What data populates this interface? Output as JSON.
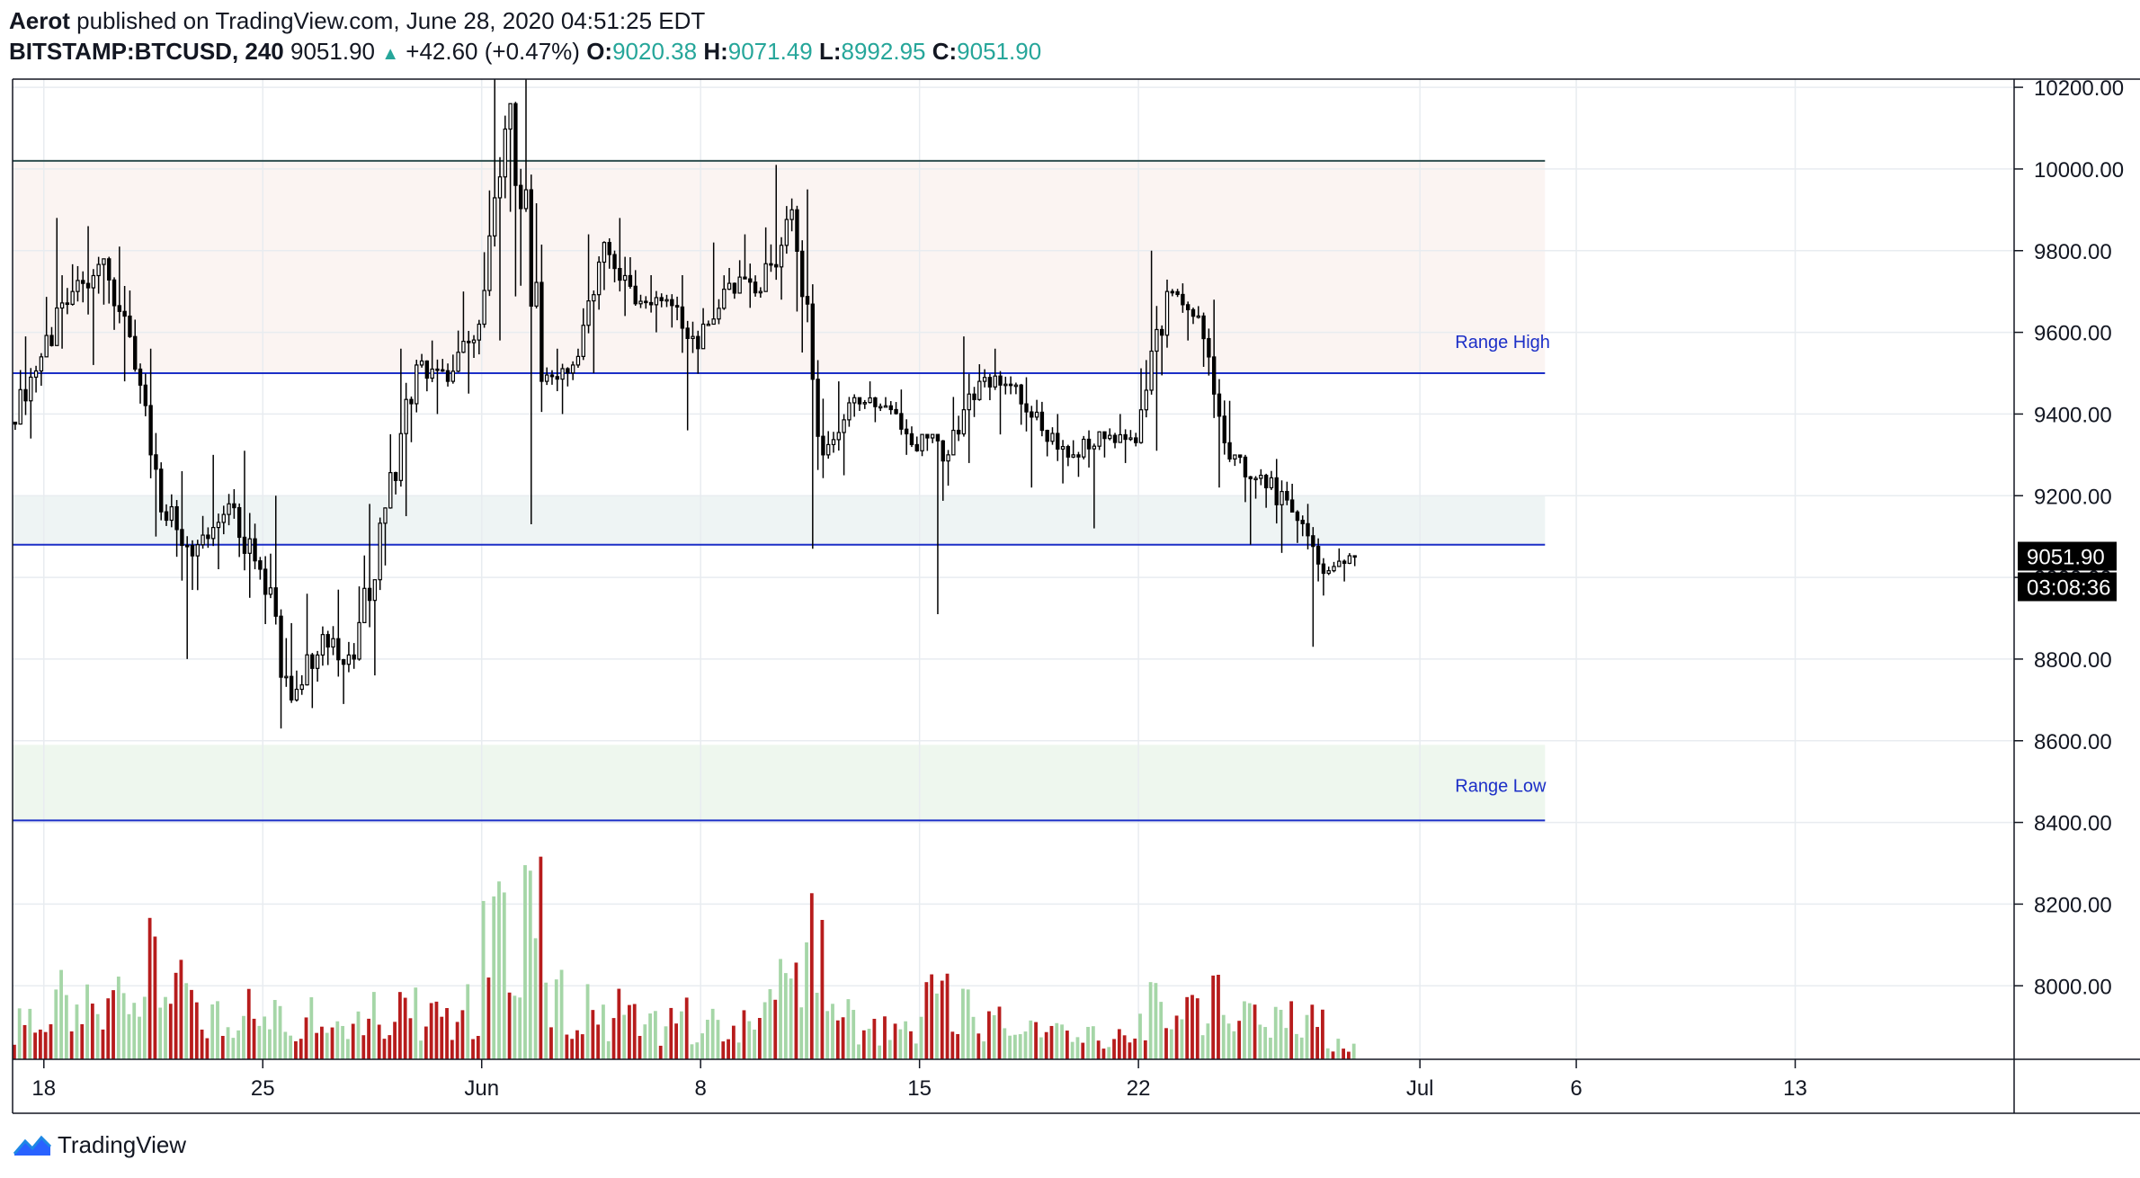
{
  "header": {
    "publisher": "Aerot",
    "published_text": "published on TradingView.com, June 28, 2020 04:51:25 EDT",
    "symbol": "BITSTAMP:BTCUSD, 240",
    "last": "9051.90",
    "change_arrow": "▲",
    "change": "+42.60 (+0.47%)",
    "o_label": "O:",
    "o": "9020.38",
    "h_label": "H:",
    "h": "9071.49",
    "l_label": "L:",
    "l": "8992.95",
    "c_label": "C:",
    "c": "9051.90"
  },
  "price_label": "9051.90",
  "countdown_label": "03:08:36",
  "logo_text": "TradingView",
  "colors": {
    "up_volume": "#a5d6a7",
    "down_volume": "#b71c1c",
    "candle": "#000000",
    "range_line": "#1c2fc7",
    "top_line": "#2f4f4f",
    "accent_green": "#26a69a",
    "price_tag_bg": "#000000"
  },
  "chart_data": {
    "type": "candlestick",
    "title": "BITSTAMP:BTCUSD, 240",
    "timeframe": "240",
    "ylim": [
      7820,
      10220
    ],
    "y_ticks": [
      "10200.00",
      "10000.00",
      "9800.00",
      "9600.00",
      "9400.00",
      "9200.00",
      "9000.00",
      "8800.00",
      "8600.00",
      "8400.00",
      "8200.00",
      "8000.00"
    ],
    "x_ticks": [
      "18",
      "25",
      "Jun",
      "8",
      "15",
      "22",
      "Jul",
      "6",
      "13"
    ],
    "x_range": [
      "2020-05-17",
      "2020-07-20"
    ],
    "grid": true,
    "ohlc_daily": [
      {
        "date": "2020-05-17",
        "o": 9380,
        "h": 9590,
        "l": 9340,
        "c": 9540
      },
      {
        "date": "2020-05-18",
        "o": 9540,
        "h": 9880,
        "l": 9560,
        "c": 9700
      },
      {
        "date": "2020-05-19",
        "o": 9700,
        "h": 9860,
        "l": 9520,
        "c": 9780
      },
      {
        "date": "2020-05-20",
        "o": 9780,
        "h": 9810,
        "l": 9480,
        "c": 9510
      },
      {
        "date": "2020-05-21",
        "o": 9510,
        "h": 9560,
        "l": 9100,
        "c": 9140
      },
      {
        "date": "2020-05-22",
        "o": 9140,
        "h": 9260,
        "l": 8800,
        "c": 9080
      },
      {
        "date": "2020-05-23",
        "o": 9080,
        "h": 9300,
        "l": 9020,
        "c": 9180
      },
      {
        "date": "2020-05-24",
        "o": 9180,
        "h": 9310,
        "l": 8950,
        "c": 9020
      },
      {
        "date": "2020-05-25",
        "o": 9020,
        "h": 9200,
        "l": 8630,
        "c": 8700
      },
      {
        "date": "2020-05-26",
        "o": 8700,
        "h": 8960,
        "l": 8680,
        "c": 8860
      },
      {
        "date": "2020-05-27",
        "o": 8860,
        "h": 8970,
        "l": 8690,
        "c": 8800
      },
      {
        "date": "2020-05-28",
        "o": 8800,
        "h": 9180,
        "l": 8760,
        "c": 9170
      },
      {
        "date": "2020-05-29",
        "o": 9170,
        "h": 9560,
        "l": 9150,
        "c": 9520
      },
      {
        "date": "2020-05-30",
        "o": 9520,
        "h": 9580,
        "l": 9400,
        "c": 9480
      },
      {
        "date": "2020-05-31",
        "o": 9480,
        "h": 9700,
        "l": 9450,
        "c": 9620
      },
      {
        "date": "2020-06-01",
        "o": 9620,
        "h": 10220,
        "l": 9580,
        "c": 10160
      },
      {
        "date": "2020-06-02",
        "o": 10160,
        "h": 10220,
        "l": 9130,
        "c": 9480
      },
      {
        "date": "2020-06-03",
        "o": 9480,
        "h": 9560,
        "l": 9400,
        "c": 9520
      },
      {
        "date": "2020-06-04",
        "o": 9520,
        "h": 9840,
        "l": 9500,
        "c": 9820
      },
      {
        "date": "2020-06-05",
        "o": 9820,
        "h": 9880,
        "l": 9640,
        "c": 9670
      },
      {
        "date": "2020-06-06",
        "o": 9670,
        "h": 9740,
        "l": 9600,
        "c": 9680
      },
      {
        "date": "2020-06-07",
        "o": 9680,
        "h": 9740,
        "l": 9360,
        "c": 9560
      },
      {
        "date": "2020-06-08",
        "o": 9560,
        "h": 9820,
        "l": 9620,
        "c": 9720
      },
      {
        "date": "2020-06-09",
        "o": 9720,
        "h": 9840,
        "l": 9660,
        "c": 9700
      },
      {
        "date": "2020-06-10",
        "o": 9700,
        "h": 10010,
        "l": 9680,
        "c": 9900
      },
      {
        "date": "2020-06-11",
        "o": 9900,
        "h": 9950,
        "l": 9070,
        "c": 9300
      },
      {
        "date": "2020-06-12",
        "o": 9300,
        "h": 9480,
        "l": 9250,
        "c": 9440
      },
      {
        "date": "2020-06-13",
        "o": 9440,
        "h": 9480,
        "l": 9380,
        "c": 9420
      },
      {
        "date": "2020-06-14",
        "o": 9420,
        "h": 9460,
        "l": 9300,
        "c": 9310
      },
      {
        "date": "2020-06-15",
        "o": 9310,
        "h": 9350,
        "l": 8910,
        "c": 9300
      },
      {
        "date": "2020-06-16",
        "o": 9300,
        "h": 9590,
        "l": 9280,
        "c": 9480
      },
      {
        "date": "2020-06-17",
        "o": 9480,
        "h": 9560,
        "l": 9350,
        "c": 9470
      },
      {
        "date": "2020-06-18",
        "o": 9470,
        "h": 9490,
        "l": 9220,
        "c": 9360
      },
      {
        "date": "2020-06-19",
        "o": 9360,
        "h": 9400,
        "l": 9230,
        "c": 9300
      },
      {
        "date": "2020-06-20",
        "o": 9300,
        "h": 9360,
        "l": 9120,
        "c": 9340
      },
      {
        "date": "2020-06-21",
        "o": 9340,
        "h": 9400,
        "l": 9280,
        "c": 9330
      },
      {
        "date": "2020-06-22",
        "o": 9330,
        "h": 9800,
        "l": 9310,
        "c": 9700
      },
      {
        "date": "2020-06-23",
        "o": 9700,
        "h": 9720,
        "l": 9580,
        "c": 9640
      },
      {
        "date": "2020-06-24",
        "o": 9640,
        "h": 9680,
        "l": 9220,
        "c": 9290
      },
      {
        "date": "2020-06-25",
        "o": 9290,
        "h": 9300,
        "l": 9080,
        "c": 9250
      },
      {
        "date": "2020-06-26",
        "o": 9250,
        "h": 9290,
        "l": 9060,
        "c": 9160
      },
      {
        "date": "2020-06-27",
        "o": 9160,
        "h": 9180,
        "l": 8830,
        "c": 9010
      },
      {
        "date": "2020-06-28",
        "o": 9010,
        "h": 9071,
        "l": 8990,
        "c": 9052
      }
    ],
    "volume_daily": [
      {
        "date": "2020-05-17",
        "v": 0.25
      },
      {
        "date": "2020-05-18",
        "v": 0.35
      },
      {
        "date": "2020-05-19",
        "v": 0.3
      },
      {
        "date": "2020-05-20",
        "v": 0.45
      },
      {
        "date": "2020-05-21",
        "v": 0.55
      },
      {
        "date": "2020-05-22",
        "v": 0.4
      },
      {
        "date": "2020-05-23",
        "v": 0.25
      },
      {
        "date": "2020-05-24",
        "v": 0.3
      },
      {
        "date": "2020-05-25",
        "v": 0.35
      },
      {
        "date": "2020-05-26",
        "v": 0.3
      },
      {
        "date": "2020-05-27",
        "v": 0.25
      },
      {
        "date": "2020-05-28",
        "v": 0.3
      },
      {
        "date": "2020-05-29",
        "v": 0.35
      },
      {
        "date": "2020-05-30",
        "v": 0.25
      },
      {
        "date": "2020-05-31",
        "v": 0.3
      },
      {
        "date": "2020-06-01",
        "v": 0.8
      },
      {
        "date": "2020-06-02",
        "v": 1.0
      },
      {
        "date": "2020-06-03",
        "v": 0.35
      },
      {
        "date": "2020-06-04",
        "v": 0.3
      },
      {
        "date": "2020-06-05",
        "v": 0.3
      },
      {
        "date": "2020-06-06",
        "v": 0.2
      },
      {
        "date": "2020-06-07",
        "v": 0.25
      },
      {
        "date": "2020-06-08",
        "v": 0.2
      },
      {
        "date": "2020-06-09",
        "v": 0.25
      },
      {
        "date": "2020-06-10",
        "v": 0.45
      },
      {
        "date": "2020-06-11",
        "v": 0.65
      },
      {
        "date": "2020-06-12",
        "v": 0.3
      },
      {
        "date": "2020-06-13",
        "v": 0.2
      },
      {
        "date": "2020-06-14",
        "v": 0.2
      },
      {
        "date": "2020-06-15",
        "v": 0.4
      },
      {
        "date": "2020-06-16",
        "v": 0.3
      },
      {
        "date": "2020-06-17",
        "v": 0.25
      },
      {
        "date": "2020-06-18",
        "v": 0.2
      },
      {
        "date": "2020-06-19",
        "v": 0.2
      },
      {
        "date": "2020-06-20",
        "v": 0.15
      },
      {
        "date": "2020-06-21",
        "v": 0.12
      },
      {
        "date": "2020-06-22",
        "v": 0.3
      },
      {
        "date": "2020-06-23",
        "v": 0.3
      },
      {
        "date": "2020-06-24",
        "v": 0.4
      },
      {
        "date": "2020-06-25",
        "v": 0.3
      },
      {
        "date": "2020-06-26",
        "v": 0.3
      },
      {
        "date": "2020-06-27",
        "v": 0.25
      },
      {
        "date": "2020-06-28",
        "v": 0.08
      }
    ],
    "horizontal_lines": [
      {
        "price": 10020,
        "style": "top"
      },
      {
        "price": 9500,
        "label": "Range High"
      },
      {
        "price": 9080,
        "label": ""
      },
      {
        "price": 8405,
        "label": "Range Low"
      }
    ],
    "zones": [
      {
        "from": 9500,
        "to": 10020,
        "color": "#fbf4f2"
      },
      {
        "from": 9080,
        "to": 9200,
        "color": "#eef4f4"
      },
      {
        "from": 8405,
        "to": 8590,
        "color": "#eef7ee"
      }
    ],
    "annotations": [
      "Range High",
      "Range Low"
    ]
  }
}
